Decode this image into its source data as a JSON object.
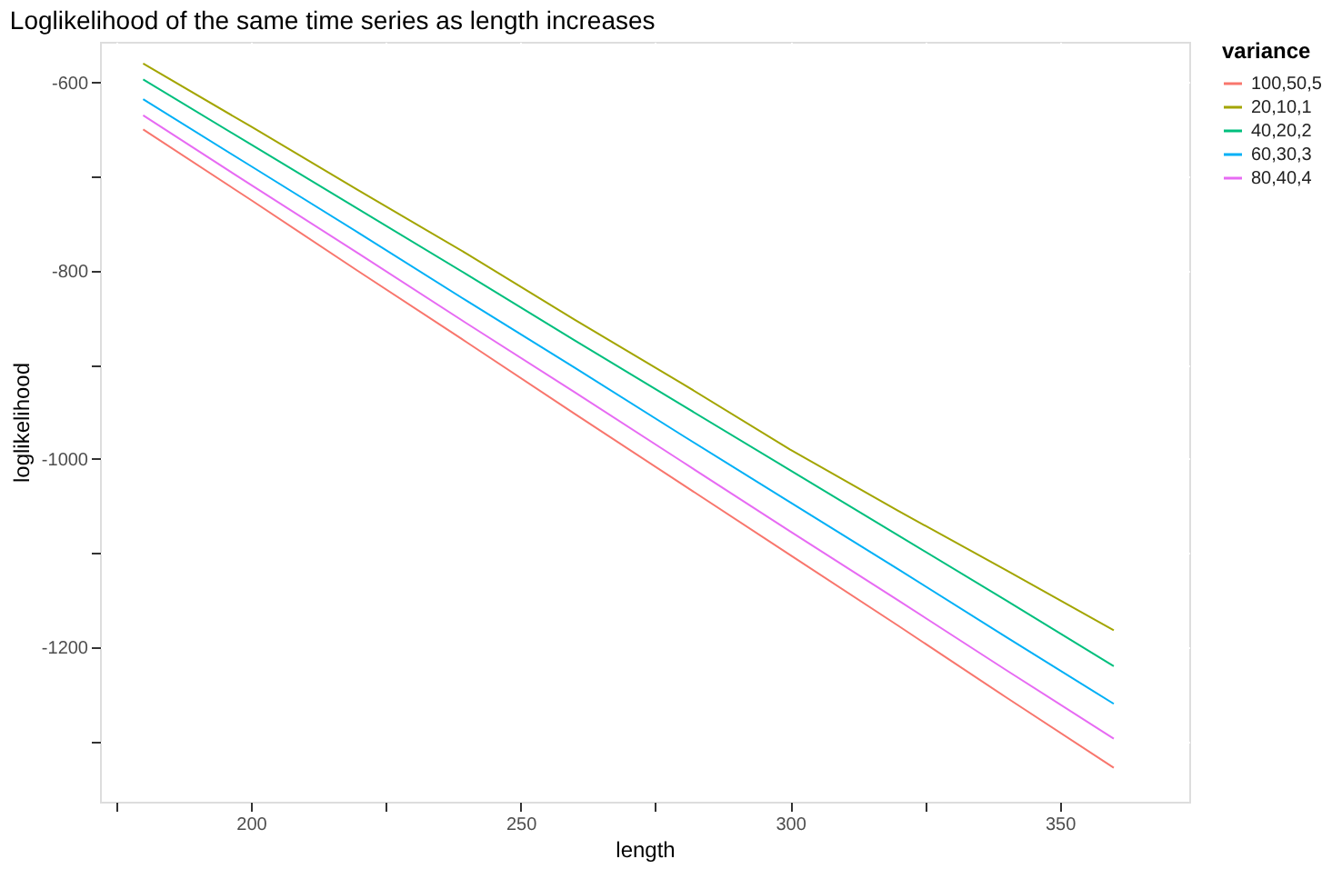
{
  "chart_data": {
    "type": "line",
    "title": "Loglikelihood of the same time series as length increases",
    "xlabel": "length",
    "ylabel": "loglikelihood",
    "legend_title": "variance",
    "x": [
      180,
      200,
      220,
      240,
      260,
      280,
      300,
      320,
      340,
      360
    ],
    "series": [
      {
        "name": "100,50,5",
        "color": "#f8766d",
        "values": [
          -650,
          -725,
          -801,
          -876,
          -952,
          -1027,
          -1102,
          -1177,
          -1253,
          -1328
        ]
      },
      {
        "name": "20,10,1",
        "color": "#a3a500",
        "values": [
          -580,
          -647,
          -715,
          -782,
          -852,
          -920,
          -990,
          -1055,
          -1118,
          -1182
        ]
      },
      {
        "name": "40,20,2",
        "color": "#00bf7d",
        "values": [
          -597,
          -666,
          -735,
          -804,
          -874,
          -943,
          -1012,
          -1081,
          -1150,
          -1220
        ]
      },
      {
        "name": "60,30,3",
        "color": "#00b0f6",
        "values": [
          -618,
          -689,
          -760,
          -832,
          -903,
          -975,
          -1046,
          -1117,
          -1189,
          -1260
        ]
      },
      {
        "name": "80,40,4",
        "color": "#e76bf3",
        "values": [
          -635,
          -709,
          -782,
          -856,
          -929,
          -1003,
          -1077,
          -1150,
          -1224,
          -1297
        ]
      }
    ],
    "xlim": [
      172,
      374
    ],
    "ylim": [
      -1364,
      -557
    ],
    "xticks": [
      {
        "value": 175,
        "label": null
      },
      200,
      {
        "value": 225,
        "label": null
      },
      250,
      {
        "value": 275,
        "label": null
      },
      300,
      {
        "value": 325,
        "label": null
      },
      350
    ],
    "yticks": [
      -600,
      {
        "value": -700,
        "label": null
      },
      -800,
      {
        "value": -900,
        "label": null
      },
      -1000,
      {
        "value": -1100,
        "label": null
      },
      -1200,
      {
        "value": -1300,
        "label": null
      }
    ],
    "grid": true,
    "legend": "right",
    "marker": "none",
    "line_style": "solid"
  }
}
